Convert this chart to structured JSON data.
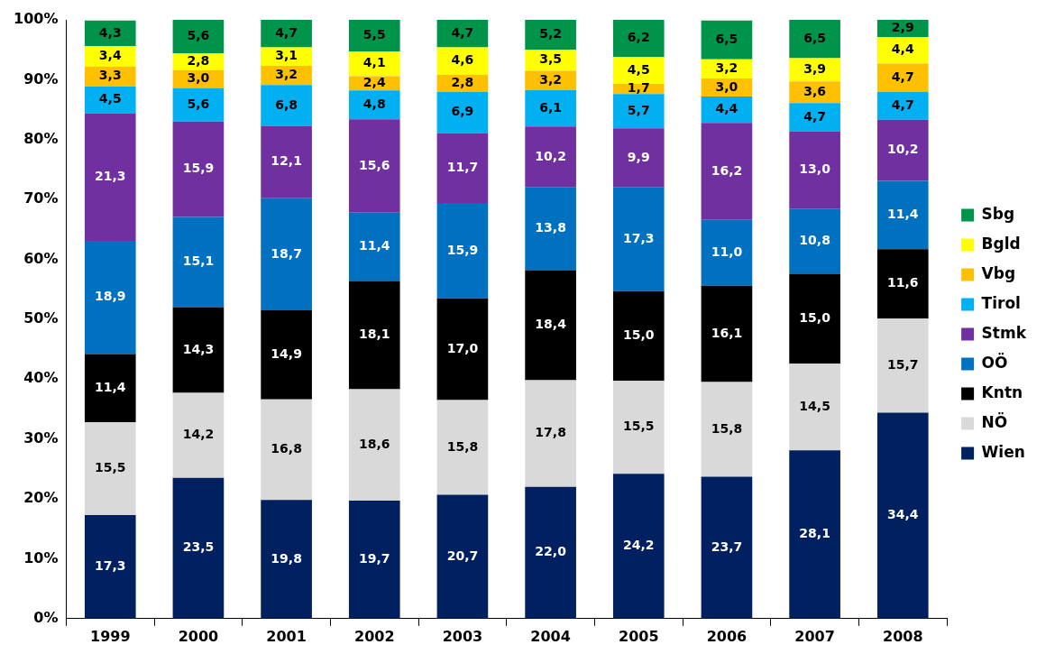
{
  "chart_data": {
    "type": "bar",
    "stacked": true,
    "categories": [
      "1999",
      "2000",
      "2001",
      "2002",
      "2003",
      "2004",
      "2005",
      "2006",
      "2007",
      "2008"
    ],
    "series": [
      {
        "name": "Wien",
        "color": "#002060",
        "values": [
          17.3,
          23.5,
          19.8,
          19.7,
          20.7,
          22.0,
          24.2,
          23.7,
          28.1,
          34.4
        ],
        "value_labels": [
          "17,3",
          "23,5",
          "19,8",
          "19,7",
          "20,7",
          "22,0",
          "24,2",
          "23,7",
          "28,1",
          "34,4"
        ]
      },
      {
        "name": "NÖ",
        "color": "#d9d9d9",
        "values": [
          15.5,
          14.2,
          16.8,
          18.6,
          15.8,
          17.8,
          15.5,
          15.8,
          14.5,
          15.7
        ],
        "value_labels": [
          "15,5",
          "14,2",
          "16,8",
          "18,6",
          "15,8",
          "17,8",
          "15,5",
          "15,8",
          "14,5",
          "15,7"
        ]
      },
      {
        "name": "Kntn",
        "color": "#000000",
        "values": [
          11.4,
          14.3,
          14.9,
          18.1,
          17.0,
          18.4,
          15.0,
          16.1,
          15.0,
          11.6
        ],
        "value_labels": [
          "11,4",
          "14,3",
          "14,9",
          "18,1",
          "17,0",
          "18,4",
          "15,0",
          "16,1",
          "15,0",
          "11,6"
        ]
      },
      {
        "name": "OÖ",
        "color": "#0070c0",
        "values": [
          18.9,
          15.1,
          18.7,
          11.4,
          15.9,
          13.8,
          17.3,
          11.0,
          10.8,
          11.4
        ],
        "value_labels": [
          "18,9",
          "15,1",
          "18,7",
          "11,4",
          "15,9",
          "13,8",
          "17,3",
          "11,0",
          "10,8",
          "11,4"
        ]
      },
      {
        "name": "Stmk",
        "color": "#7030a0",
        "values": [
          21.3,
          15.9,
          12.1,
          15.6,
          11.7,
          10.2,
          9.9,
          16.2,
          13.0,
          10.2
        ],
        "value_labels": [
          "21,3",
          "15,9",
          "12,1",
          "15,6",
          "11,7",
          "10,2",
          "9,9",
          "16,2",
          "13,0",
          "10,2"
        ]
      },
      {
        "name": "Tirol",
        "color": "#00b0f0",
        "values": [
          4.5,
          5.6,
          6.8,
          4.8,
          6.9,
          6.1,
          5.7,
          4.4,
          4.7,
          4.7
        ],
        "value_labels": [
          "4,5",
          "5,6",
          "6,8",
          "4,8",
          "6,9",
          "6,1",
          "5,7",
          "4,4",
          "4,7",
          "4,7"
        ]
      },
      {
        "name": "Vbg",
        "color": "#ffc000",
        "values": [
          3.3,
          3.0,
          3.2,
          2.4,
          2.8,
          3.2,
          1.7,
          3.0,
          3.6,
          4.7
        ],
        "value_labels": [
          "3,3",
          "3,0",
          "3,2",
          "2,4",
          "2,8",
          "3,2",
          "1,7",
          "3,0",
          "3,6",
          "4,7"
        ]
      },
      {
        "name": "Bgld",
        "color": "#ffff00",
        "values": [
          3.4,
          2.8,
          3.1,
          4.1,
          4.6,
          3.5,
          4.5,
          3.2,
          3.9,
          4.4
        ],
        "value_labels": [
          "3,4",
          "2,8",
          "3,1",
          "4,1",
          "4,6",
          "3,5",
          "4,5",
          "3,2",
          "3,9",
          "4,4"
        ]
      },
      {
        "name": "Sbg",
        "color": "#00944a",
        "values": [
          4.3,
          5.6,
          4.7,
          5.5,
          4.7,
          5.2,
          6.2,
          6.5,
          6.5,
          2.9
        ],
        "value_labels": [
          "4,3",
          "5,6",
          "4,7",
          "5,5",
          "4,7",
          "5,2",
          "6,2",
          "6,5",
          "6,5",
          "2,9"
        ]
      }
    ],
    "ylim": [
      0,
      100
    ],
    "yticks": [
      {
        "value": 0,
        "label": "0%"
      },
      {
        "value": 10,
        "label": "10%"
      },
      {
        "value": 20,
        "label": "20%"
      },
      {
        "value": 30,
        "label": "30%"
      },
      {
        "value": 40,
        "label": "40%"
      },
      {
        "value": 50,
        "label": "50%"
      },
      {
        "value": 60,
        "label": "60%"
      },
      {
        "value": 70,
        "label": "70%"
      },
      {
        "value": 80,
        "label": "80%"
      },
      {
        "value": 90,
        "label": "90%"
      },
      {
        "value": 100,
        "label": "100%"
      }
    ],
    "grid": false,
    "legend": "right"
  }
}
